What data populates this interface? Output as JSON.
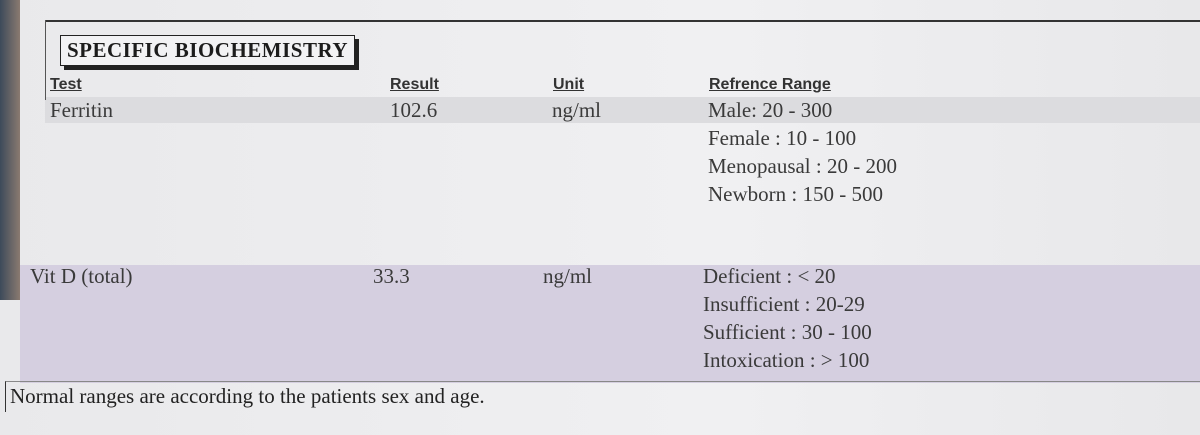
{
  "header": {
    "title": "SPECIFIC BIOCHEMISTRY"
  },
  "table": {
    "columns": [
      "Test",
      "Result",
      "Unit",
      "Refrence Range"
    ],
    "rows": [
      {
        "test": "Ferritin",
        "result": "102.6",
        "unit": "ng/ml",
        "range": [
          "Male: 20 - 300",
          "Female : 10 - 100",
          "Menopausal : 20 - 200",
          "Newborn : 150 - 500"
        ]
      },
      {
        "test": "Vit D (total)",
        "result": "33.3",
        "unit": "ng/ml",
        "range": [
          "Deficient : < 20",
          "Insufficient : 20-29",
          "Sufficient : 30 - 100",
          "Intoxication : > 100"
        ]
      }
    ]
  },
  "footer": {
    "note": "Normal ranges are according to the patients sex and age."
  }
}
